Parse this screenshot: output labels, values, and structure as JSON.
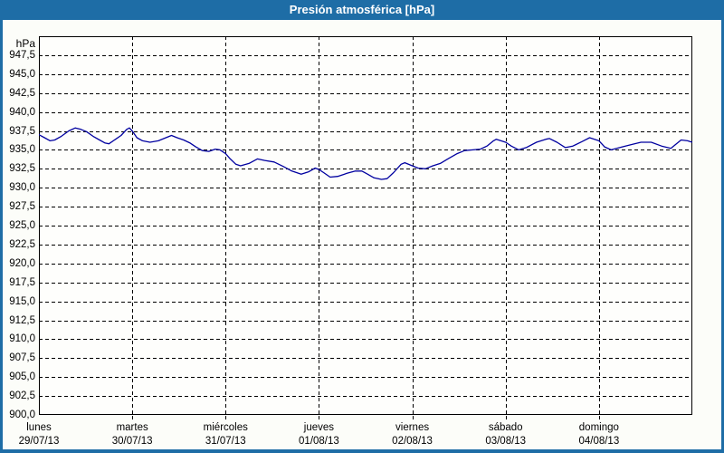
{
  "window": {
    "title": "Presión atmosférica [hPa]"
  },
  "colors": {
    "titlebar": "#1e6da6",
    "frame": "#1e6da6",
    "background": "#fcfdf9",
    "plot_background": "#fefefc",
    "grid": "#000000",
    "axis": "#000000",
    "line": "#0000a0",
    "text": "#000000",
    "title_text": "#ffffff"
  },
  "chart_data": {
    "type": "line",
    "title": "Presión atmosférica [hPa]",
    "ylabel": "hPa",
    "grid": "dashed-black",
    "legend": "none",
    "y_axis": {
      "min": 900,
      "max": 950,
      "tick_step": 2.5,
      "decimal_separator": ",",
      "ticks": [
        {
          "value": 947.5,
          "label": "947,5"
        },
        {
          "value": 945.0,
          "label": "945,0"
        },
        {
          "value": 942.5,
          "label": "942,5"
        },
        {
          "value": 940.0,
          "label": "940,0"
        },
        {
          "value": 937.5,
          "label": "937,5"
        },
        {
          "value": 935.0,
          "label": "935,0"
        },
        {
          "value": 932.5,
          "label": "932,5"
        },
        {
          "value": 930.0,
          "label": "930,0"
        },
        {
          "value": 927.5,
          "label": "927,5"
        },
        {
          "value": 925.0,
          "label": "925,0"
        },
        {
          "value": 922.5,
          "label": "922,5"
        },
        {
          "value": 920.0,
          "label": "920,0"
        },
        {
          "value": 917.5,
          "label": "917,5"
        },
        {
          "value": 915.0,
          "label": "915,0"
        },
        {
          "value": 912.5,
          "label": "912,5"
        },
        {
          "value": 910.0,
          "label": "910,0"
        },
        {
          "value": 907.5,
          "label": "907,5"
        },
        {
          "value": 905.0,
          "label": "905,0"
        },
        {
          "value": 902.5,
          "label": "902,5"
        },
        {
          "value": 900.0,
          "label": "900,0"
        }
      ]
    },
    "x_axis": {
      "span_days": 7,
      "days": [
        {
          "name": "lunes",
          "date": "29/07/13"
        },
        {
          "name": "martes",
          "date": "30/07/13"
        },
        {
          "name": "miércoles",
          "date": "31/07/13"
        },
        {
          "name": "jueves",
          "date": "01/08/13"
        },
        {
          "name": "viernes",
          "date": "02/08/13"
        },
        {
          "name": "sábado",
          "date": "03/08/13"
        },
        {
          "name": "domingo",
          "date": "04/08/13"
        }
      ]
    },
    "series": [
      {
        "name": "Presión atmosférica",
        "unit": "hPa",
        "color": "#0000a0",
        "points": [
          [
            0.0,
            937.0
          ],
          [
            0.06,
            936.6
          ],
          [
            0.12,
            936.2
          ],
          [
            0.17,
            936.3
          ],
          [
            0.24,
            936.8
          ],
          [
            0.32,
            937.5
          ],
          [
            0.39,
            937.9
          ],
          [
            0.45,
            937.7
          ],
          [
            0.51,
            937.4
          ],
          [
            0.58,
            936.8
          ],
          [
            0.65,
            936.3
          ],
          [
            0.71,
            935.9
          ],
          [
            0.75,
            935.8
          ],
          [
            0.81,
            936.3
          ],
          [
            0.88,
            936.9
          ],
          [
            0.94,
            937.7
          ],
          [
            0.97,
            937.9
          ],
          [
            1.0,
            937.5
          ],
          [
            1.05,
            936.6
          ],
          [
            1.11,
            936.2
          ],
          [
            1.19,
            936.0
          ],
          [
            1.28,
            936.2
          ],
          [
            1.36,
            936.6
          ],
          [
            1.42,
            936.9
          ],
          [
            1.48,
            936.6
          ],
          [
            1.55,
            936.3
          ],
          [
            1.62,
            935.9
          ],
          [
            1.68,
            935.4
          ],
          [
            1.75,
            934.9
          ],
          [
            1.82,
            934.8
          ],
          [
            1.89,
            935.1
          ],
          [
            1.94,
            935.0
          ],
          [
            2.0,
            934.5
          ],
          [
            2.05,
            933.8
          ],
          [
            2.11,
            933.1
          ],
          [
            2.16,
            932.9
          ],
          [
            2.25,
            933.2
          ],
          [
            2.34,
            933.8
          ],
          [
            2.42,
            933.6
          ],
          [
            2.52,
            933.4
          ],
          [
            2.62,
            932.8
          ],
          [
            2.71,
            932.2
          ],
          [
            2.81,
            931.8
          ],
          [
            2.89,
            932.1
          ],
          [
            2.96,
            932.6
          ],
          [
            3.0,
            932.4
          ],
          [
            3.05,
            932.0
          ],
          [
            3.12,
            931.4
          ],
          [
            3.2,
            931.5
          ],
          [
            3.3,
            931.9
          ],
          [
            3.39,
            932.2
          ],
          [
            3.46,
            932.2
          ],
          [
            3.52,
            931.8
          ],
          [
            3.59,
            931.3
          ],
          [
            3.67,
            931.1
          ],
          [
            3.73,
            931.2
          ],
          [
            3.8,
            932.0
          ],
          [
            3.88,
            933.1
          ],
          [
            3.92,
            933.3
          ],
          [
            4.0,
            932.9
          ],
          [
            4.06,
            932.6
          ],
          [
            4.14,
            932.5
          ],
          [
            4.22,
            932.9
          ],
          [
            4.3,
            933.2
          ],
          [
            4.38,
            933.8
          ],
          [
            4.48,
            934.5
          ],
          [
            4.56,
            934.9
          ],
          [
            4.65,
            935.0
          ],
          [
            4.73,
            935.1
          ],
          [
            4.8,
            935.5
          ],
          [
            4.87,
            936.2
          ],
          [
            4.9,
            936.4
          ],
          [
            5.0,
            936.0
          ],
          [
            5.06,
            935.5
          ],
          [
            5.14,
            935.0
          ],
          [
            5.22,
            935.3
          ],
          [
            5.33,
            936.0
          ],
          [
            5.43,
            936.4
          ],
          [
            5.47,
            936.5
          ],
          [
            5.55,
            936.0
          ],
          [
            5.64,
            935.3
          ],
          [
            5.72,
            935.5
          ],
          [
            5.82,
            936.1
          ],
          [
            5.9,
            936.6
          ],
          [
            6.0,
            936.2
          ],
          [
            6.06,
            935.4
          ],
          [
            6.13,
            935.0
          ],
          [
            6.25,
            935.4
          ],
          [
            6.35,
            935.7
          ],
          [
            6.45,
            936.0
          ],
          [
            6.56,
            936.0
          ],
          [
            6.67,
            935.5
          ],
          [
            6.77,
            935.2
          ],
          [
            6.88,
            936.3
          ],
          [
            6.95,
            936.2
          ],
          [
            7.0,
            936.0
          ]
        ]
      }
    ]
  }
}
